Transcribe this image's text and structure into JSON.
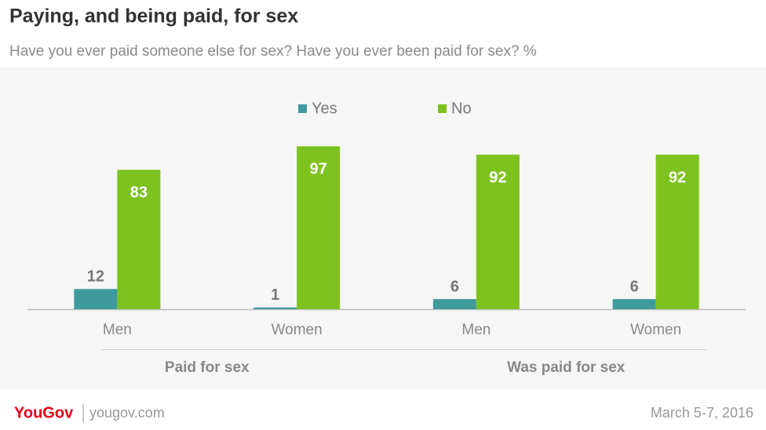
{
  "chart_data": {
    "type": "bar",
    "title": "Paying, and being paid, for sex",
    "subtitle": "Have you ever paid someone else for sex? Have you ever been paid for sex? %",
    "groups": [
      {
        "name": "Paid for sex",
        "categories": [
          "Men",
          "Women"
        ]
      },
      {
        "name": "Was paid for sex",
        "categories": [
          "Men",
          "Women"
        ]
      }
    ],
    "series": [
      {
        "name": "Yes",
        "color": "#3f9a9c",
        "values": [
          12,
          1,
          6,
          6
        ]
      },
      {
        "name": "No",
        "color": "#7ec21f",
        "values": [
          83,
          97,
          92,
          92
        ]
      }
    ],
    "ylim": [
      0,
      100
    ],
    "footer": {
      "brand": "YouGov",
      "site": "yougov.com",
      "date": "March 5-7, 2016"
    }
  }
}
